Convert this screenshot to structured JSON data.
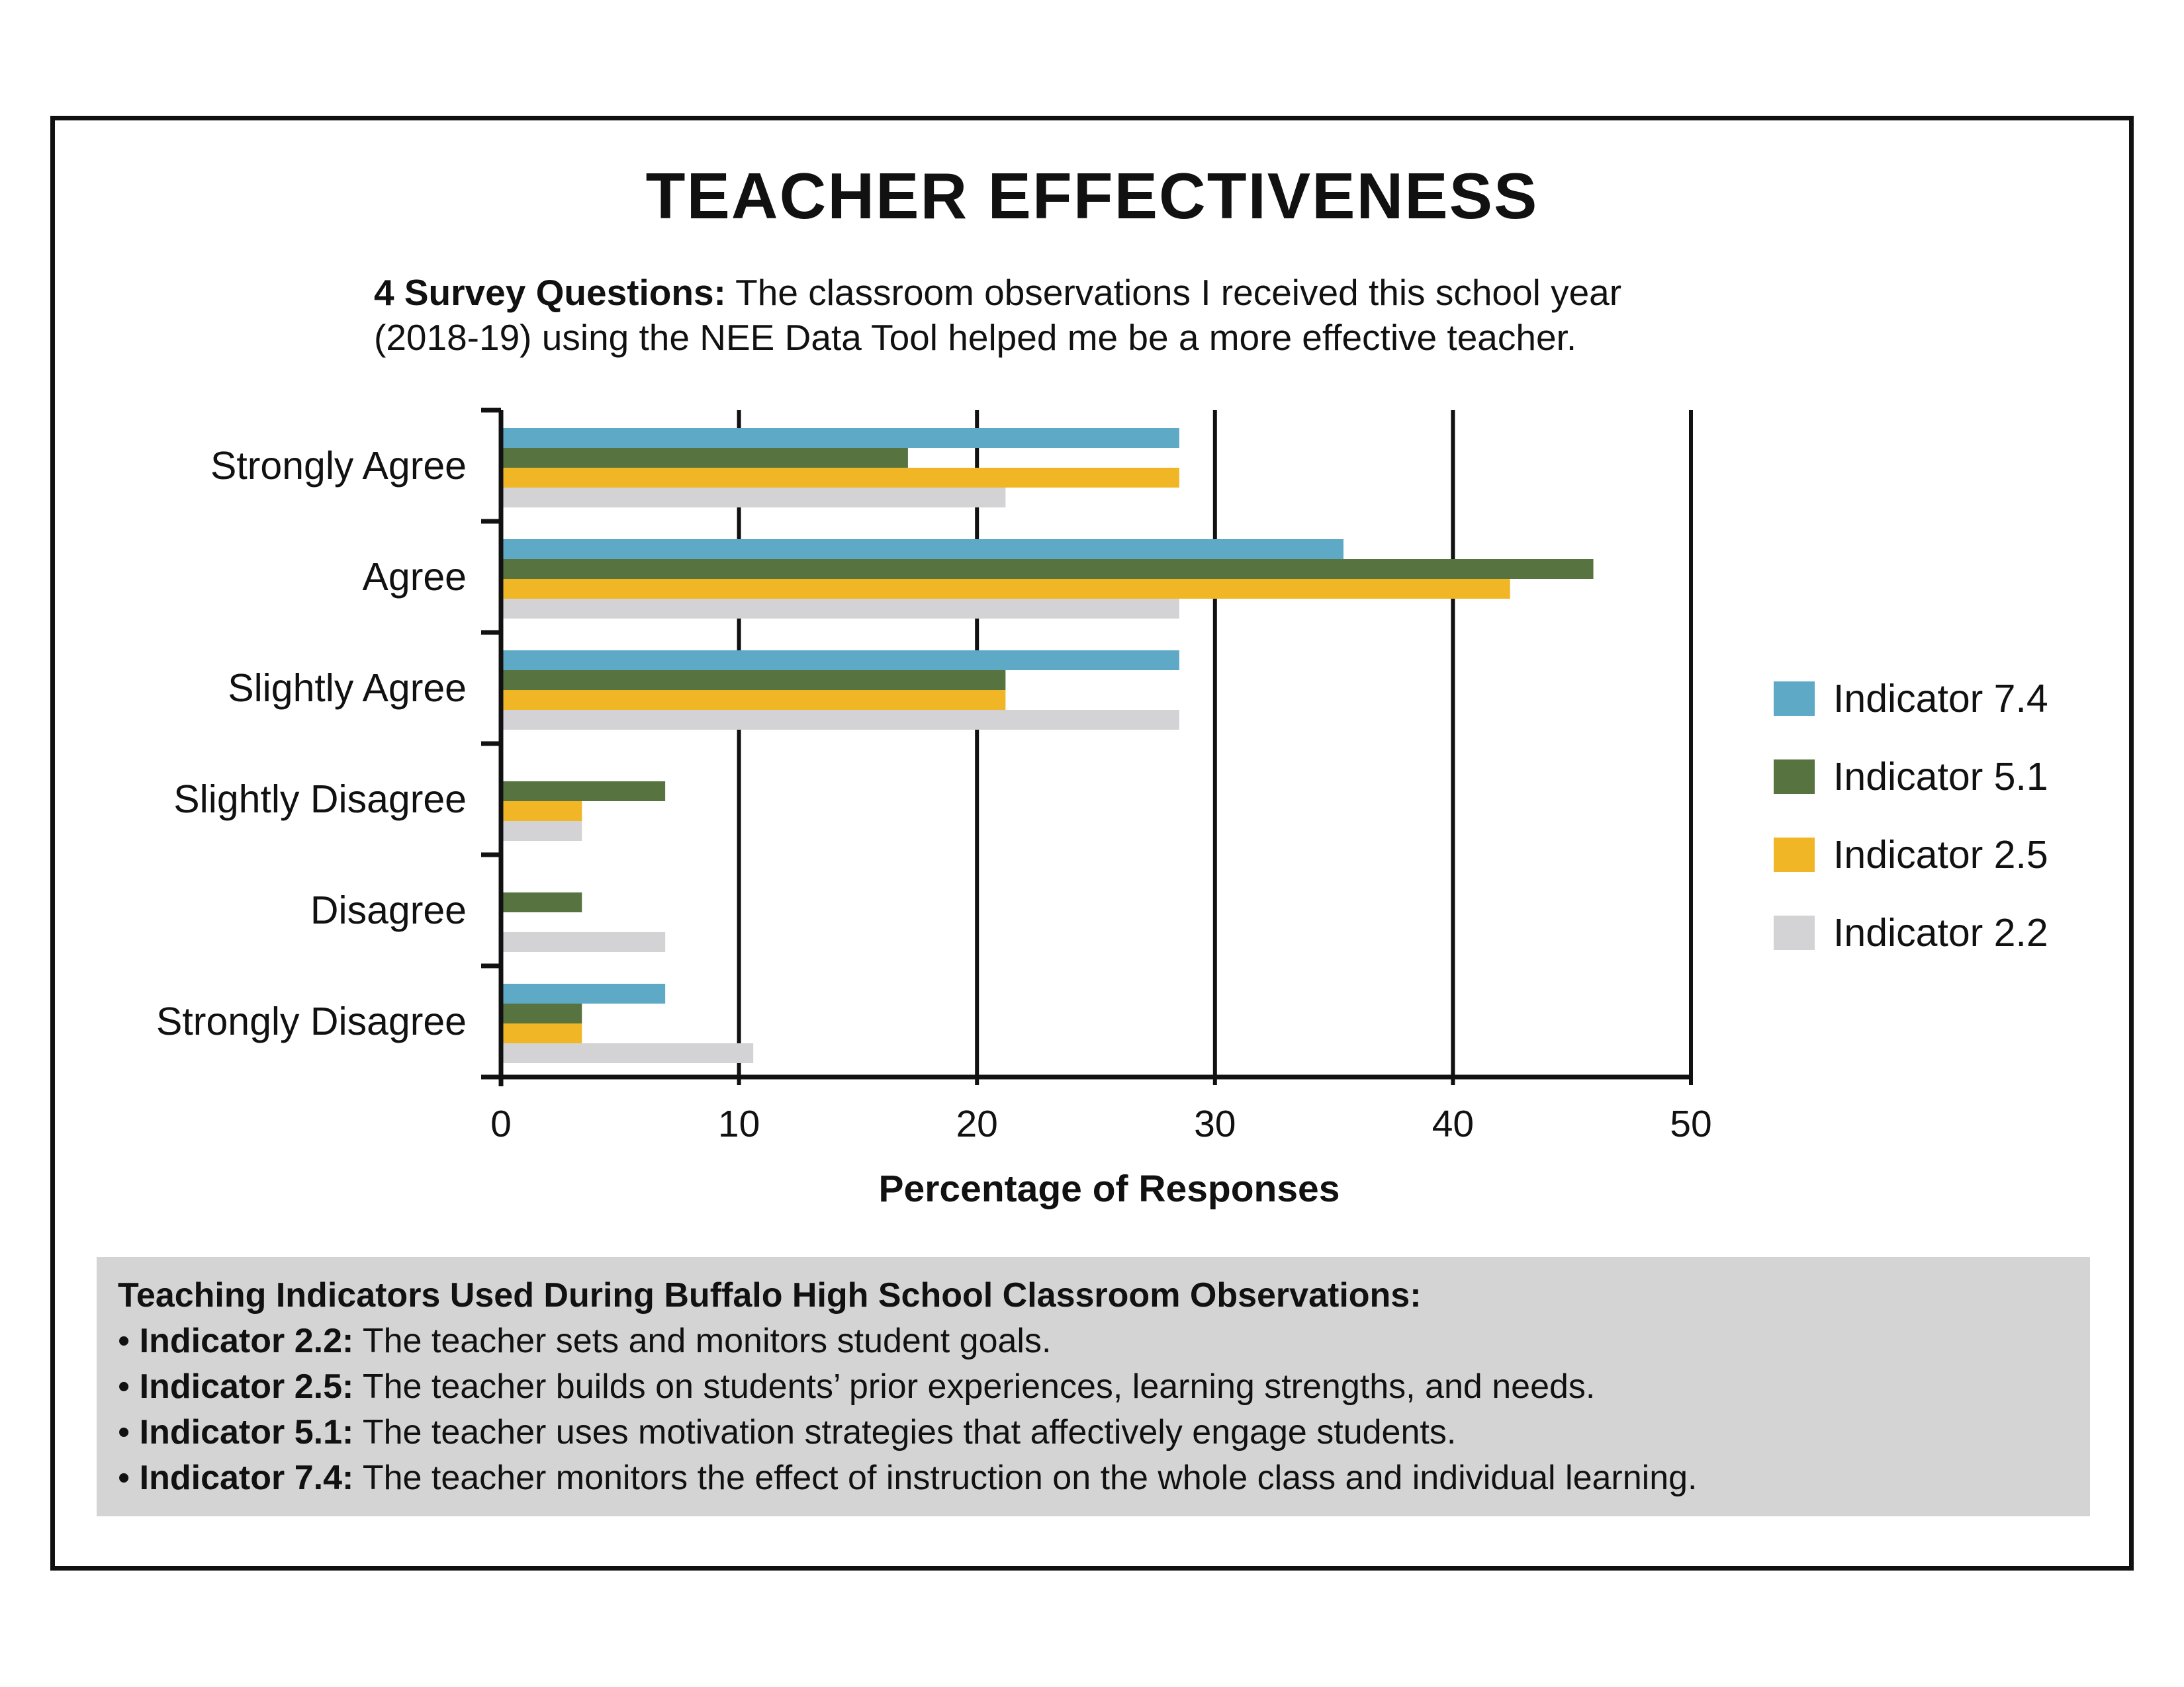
{
  "title": "TEACHER EFFECTIVENESS",
  "subtitle": {
    "lead": "4 Survey Questions:",
    "line1": "The classroom observations I received this school year",
    "line2": "(2018-19) using the NEE Data Tool helped me be a more effective teacher."
  },
  "colors": {
    "Indicator 7.4": "#5ea9c5",
    "Indicator 5.1": "#577440",
    "Indicator 2.5": "#f0b625",
    "Indicator 2.2": "#d3d3d5"
  },
  "chart_data": {
    "type": "bar",
    "orientation": "horizontal",
    "categories": [
      "Strongly Agree",
      "Agree",
      "Slightly Agree",
      "Slightly Disagree",
      "Disagree",
      "Strongly Disagree"
    ],
    "series": [
      {
        "name": "Indicator 7.4",
        "values": [
          28.5,
          35.4,
          28.5,
          0,
          0,
          6.9
        ]
      },
      {
        "name": "Indicator 5.1",
        "values": [
          17.1,
          45.9,
          21.2,
          6.9,
          3.4,
          3.4
        ]
      },
      {
        "name": "Indicator 2.5",
        "values": [
          28.5,
          42.4,
          21.2,
          3.4,
          0,
          3.4
        ]
      },
      {
        "name": "Indicator 2.2",
        "values": [
          21.2,
          28.5,
          28.5,
          3.4,
          6.9,
          10.6
        ]
      }
    ],
    "xlabel": "Percentage of Responses",
    "ylabel": "",
    "xlim": [
      0,
      50
    ],
    "xticks": [
      0,
      10,
      20,
      30,
      40,
      50
    ],
    "grid": "vertical lines at each tick",
    "legend": "right"
  },
  "notes": {
    "heading": "Teaching Indicators Used During Buffalo High School Classroom Observations:",
    "items": [
      {
        "bullet": "•",
        "label": "Indicator 2.2:",
        "text": "The teacher sets and monitors student goals."
      },
      {
        "bullet": "•",
        "label": "Indicator 2.5:",
        "text": "The teacher builds on students’ prior experiences, learning strengths, and needs."
      },
      {
        "bullet": "•",
        "label": "Indicator 5.1:",
        "text": "The teacher uses motivation strategies that affectively engage students."
      },
      {
        "bullet": "•",
        "label": "Indicator 7.4:",
        "text": "The teacher monitors the effect of instruction on the whole class and individual learning."
      }
    ]
  }
}
